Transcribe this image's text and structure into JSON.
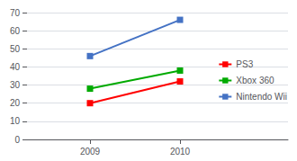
{
  "chart_data": {
    "type": "line",
    "x": [
      2009,
      2010
    ],
    "series": [
      {
        "name": "PS3",
        "values": [
          20,
          32
        ],
        "color": "#FF0000",
        "marker": "square"
      },
      {
        "name": "Xbox 360",
        "values": [
          28,
          38
        ],
        "color": "#00AA00",
        "marker": "square"
      },
      {
        "name": "Nintendo Wii",
        "values": [
          46,
          66
        ],
        "color": "#4472C4",
        "marker": "square"
      }
    ],
    "xlim": [
      2008.3,
      2011.2
    ],
    "xticks": [
      2009,
      2010
    ],
    "ylim": [
      0,
      70
    ],
    "yticks": [
      0,
      10,
      20,
      30,
      40,
      50,
      60,
      70
    ],
    "grid": true,
    "legend": "right"
  }
}
